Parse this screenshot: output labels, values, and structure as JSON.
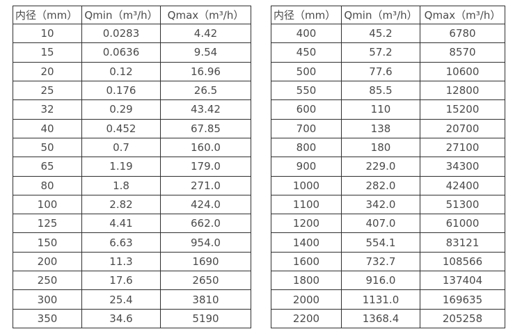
{
  "colors": {
    "border": "#2e2e2e",
    "text": "#4a4a4a",
    "background": "#ffffff"
  },
  "tables": [
    {
      "name": "flow-table-small-diameters",
      "columns": [
        "内径（mm）",
        "Qmin（m³/h）",
        "Qmax（m³/h）"
      ],
      "rows": [
        [
          "10",
          "0.0283",
          "4.42"
        ],
        [
          "15",
          "0.0636",
          "9.54"
        ],
        [
          "20",
          "0.12",
          "16.96"
        ],
        [
          "25",
          "0.176",
          "26.5"
        ],
        [
          "32",
          "0.29",
          "43.42"
        ],
        [
          "40",
          "0.452",
          "67.85"
        ],
        [
          "50",
          "0.7",
          "160.0"
        ],
        [
          "65",
          "1.19",
          "179.0"
        ],
        [
          "80",
          "1.8",
          "271.0"
        ],
        [
          "100",
          "2.82",
          "424.0"
        ],
        [
          "125",
          "4.41",
          "662.0"
        ],
        [
          "150",
          "6.63",
          "954.0"
        ],
        [
          "200",
          "11.3",
          "1690"
        ],
        [
          "250",
          "17.6",
          "2650"
        ],
        [
          "300",
          "25.4",
          "3810"
        ],
        [
          "350",
          "34.6",
          "5190"
        ]
      ]
    },
    {
      "name": "flow-table-large-diameters",
      "columns": [
        "内径（mm）",
        "Qmin（m³/h）",
        "Qmax（m³/h）"
      ],
      "rows": [
        [
          "400",
          "45.2",
          "6780"
        ],
        [
          "450",
          "57.2",
          "8570"
        ],
        [
          "500",
          "77.6",
          "10600"
        ],
        [
          "550",
          "85.5",
          "12800"
        ],
        [
          "600",
          "110",
          "15200"
        ],
        [
          "700",
          "138",
          "20700"
        ],
        [
          "800",
          "180",
          "27100"
        ],
        [
          "900",
          "229.0",
          "34300"
        ],
        [
          "1000",
          "282.0",
          "42400"
        ],
        [
          "1100",
          "342.0",
          "51300"
        ],
        [
          "1200",
          "407.0",
          "61000"
        ],
        [
          "1400",
          "554.1",
          "83121"
        ],
        [
          "1600",
          "732.7",
          "108566"
        ],
        [
          "1800",
          "916.0",
          "137404"
        ],
        [
          "2000",
          "1131.0",
          "169635"
        ],
        [
          "2200",
          "1368.4",
          "205258"
        ]
      ]
    }
  ]
}
